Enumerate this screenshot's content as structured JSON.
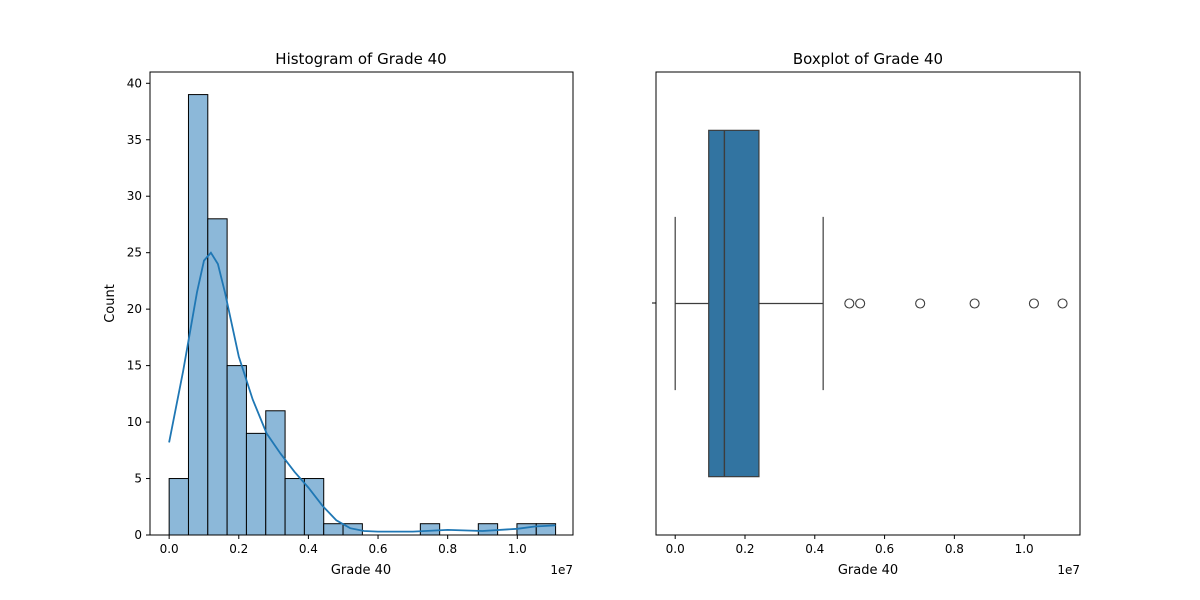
{
  "chart_data": [
    {
      "type": "histogram",
      "title": "Histogram of Grade 40",
      "xlabel": "Grade 40",
      "ylabel": "Count",
      "x_offset_label": "1e7",
      "xlim": [
        -0.055,
        1.16
      ],
      "ylim": [
        0,
        41
      ],
      "x_ticks": [
        0.0,
        0.2,
        0.4,
        0.6,
        0.8,
        1.0
      ],
      "x_tick_labels": [
        "0.0",
        "0.2",
        "0.4",
        "0.6",
        "0.8",
        "1.0"
      ],
      "y_ticks": [
        0,
        5,
        10,
        15,
        20,
        25,
        30,
        35,
        40
      ],
      "y_tick_labels": [
        "0",
        "5",
        "10",
        "15",
        "20",
        "25",
        "30",
        "35",
        "40"
      ],
      "bin_start": 0.0,
      "bin_width": 0.0555,
      "counts": [
        5,
        39,
        28,
        15,
        9,
        11,
        5,
        5,
        1,
        1,
        0,
        0,
        0,
        1,
        0,
        0,
        1,
        0,
        1,
        1
      ],
      "bar_color": "#8cb8d9",
      "bar_edge_color": "#000000",
      "kde": {
        "x": [
          0.0,
          0.04,
          0.08,
          0.1,
          0.12,
          0.14,
          0.16,
          0.2,
          0.24,
          0.28,
          0.32,
          0.36,
          0.4,
          0.44,
          0.48,
          0.52,
          0.56,
          0.6,
          0.7,
          0.8,
          0.9,
          1.0,
          1.05,
          1.11
        ],
        "y": [
          8.2,
          14.5,
          21.5,
          24.3,
          25.0,
          24.0,
          21.5,
          15.8,
          12.0,
          9.0,
          7.2,
          5.6,
          4.2,
          2.6,
          1.3,
          0.6,
          0.35,
          0.3,
          0.3,
          0.45,
          0.35,
          0.55,
          0.75,
          0.85
        ],
        "color": "#1f77b4"
      }
    },
    {
      "type": "boxplot",
      "title": "Boxplot of Grade 40",
      "xlabel": "Grade 40",
      "x_offset_label": "1e7",
      "xlim": [
        -0.055,
        1.16
      ],
      "x_ticks": [
        0.0,
        0.2,
        0.4,
        0.6,
        0.8,
        1.0
      ],
      "x_tick_labels": [
        "0.0",
        "0.2",
        "0.4",
        "0.6",
        "0.8",
        "1.0"
      ],
      "whisker_low": 0.0,
      "q1": 0.096,
      "median": 0.141,
      "q3": 0.24,
      "whisker_high": 0.424,
      "outliers": [
        0.499,
        0.53,
        0.702,
        0.858,
        1.028,
        1.11
      ],
      "box_color": "#3274a1",
      "line_color": "#3d3d3d"
    }
  ]
}
